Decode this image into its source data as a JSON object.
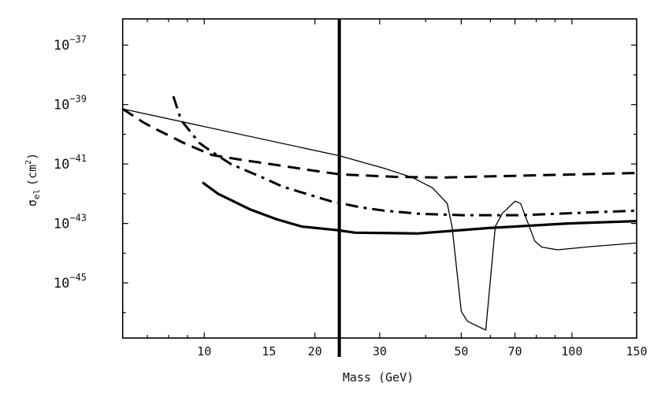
{
  "chart_data": {
    "type": "line",
    "title": "",
    "xlabel": "Mass (GeV)",
    "ylabel": "σ",
    "ylabel_subscript": "el",
    "ylabel_units": "(cm",
    "ylabel_units_power": "2",
    "ylabel_units_close": ")",
    "x_scale": "log",
    "y_scale": "log",
    "xlim": [
      6,
      150
    ],
    "ylim": [
      1.4e-47,
      7.6e-37
    ],
    "grid": false,
    "legend": "none",
    "x_ticks": [
      {
        "value": 10,
        "label": "10"
      },
      {
        "value": 15,
        "label": "15"
      },
      {
        "value": 20,
        "label": "20"
      },
      {
        "value": 30,
        "label": "30"
      },
      {
        "value": 50,
        "label": "50"
      },
      {
        "value": 70,
        "label": "70"
      },
      {
        "value": 100,
        "label": "100"
      },
      {
        "value": 150,
        "label": "150"
      }
    ],
    "y_ticks": [
      {
        "value": 1e-37,
        "base": "10",
        "exponent": "−37"
      },
      {
        "value": 1e-39,
        "base": "10",
        "exponent": "−39"
      },
      {
        "value": 1e-41,
        "base": "10",
        "exponent": "−41"
      },
      {
        "value": 1e-43,
        "base": "10",
        "exponent": "−43"
      },
      {
        "value": 1e-45,
        "base": "10",
        "exponent": "−45"
      }
    ],
    "vertical_line": {
      "x": 23.3,
      "color": "#000000"
    },
    "series": [
      {
        "style": "thin-solid",
        "color": "#000000",
        "x": [
          6,
          23.3,
          30.8,
          36.8,
          41.7,
          45.8,
          47.2,
          50.0,
          52.0,
          58.3,
          61.9,
          64.7,
          70.0,
          72.5,
          79.2,
          82.8,
          91.4,
          114.8,
          150
        ],
        "y": [
          7.1e-40,
          1.9e-41,
          7.2e-42,
          3.5e-42,
          1.6e-42,
          4.7e-43,
          7.9e-44,
          1.1e-46,
          5.1e-47,
          2.6e-47,
          7.9e-44,
          2.2e-43,
          5.6e-43,
          4.7e-43,
          2.6e-44,
          1.6e-44,
          1.3e-44,
          1.7e-44,
          2.2e-44
        ]
      },
      {
        "style": "dashed",
        "color": "#000000",
        "x": [
          6,
          6.83,
          7.46,
          8.12,
          8.88,
          10.5,
          13.0,
          15.7,
          19.1,
          23.3,
          32.9,
          44.3,
          69.0,
          150
        ],
        "y": [
          7.1e-40,
          2.5e-40,
          1.4e-40,
          8.4e-41,
          4.8e-41,
          2e-41,
          1.3e-41,
          9.3e-42,
          6.4e-42,
          4.5e-42,
          3.7e-42,
          3.5e-42,
          4e-42,
          5e-42
        ]
      },
      {
        "style": "dash-dot",
        "color": "#000000",
        "x": [
          8.24,
          8.65,
          9.7,
          10.3,
          11.8,
          14.4,
          16.4,
          22.1,
          26.6,
          30.8,
          38.7,
          50.5,
          72.5,
          97.5,
          150
        ],
        "y": [
          1.9e-39,
          3e-40,
          5.1e-41,
          3e-41,
          1e-41,
          3.5e-42,
          1.7e-42,
          5.6e-43,
          3.5e-43,
          2.7e-43,
          2.1e-43,
          1.9e-43,
          1.9e-43,
          2.2e-43,
          2.7e-43
        ]
      },
      {
        "style": "thick-solid",
        "color": "#000000",
        "x": [
          9.89,
          10.9,
          13.3,
          15.7,
          18.4,
          23.1,
          25.7,
          38.1,
          59.4,
          97.5,
          150
        ],
        "y": [
          2.4e-42,
          1e-42,
          3e-43,
          1.4e-43,
          7.9e-44,
          5.9e-44,
          4.9e-44,
          4.6e-44,
          7e-44,
          1e-43,
          1.2e-43
        ]
      }
    ]
  }
}
